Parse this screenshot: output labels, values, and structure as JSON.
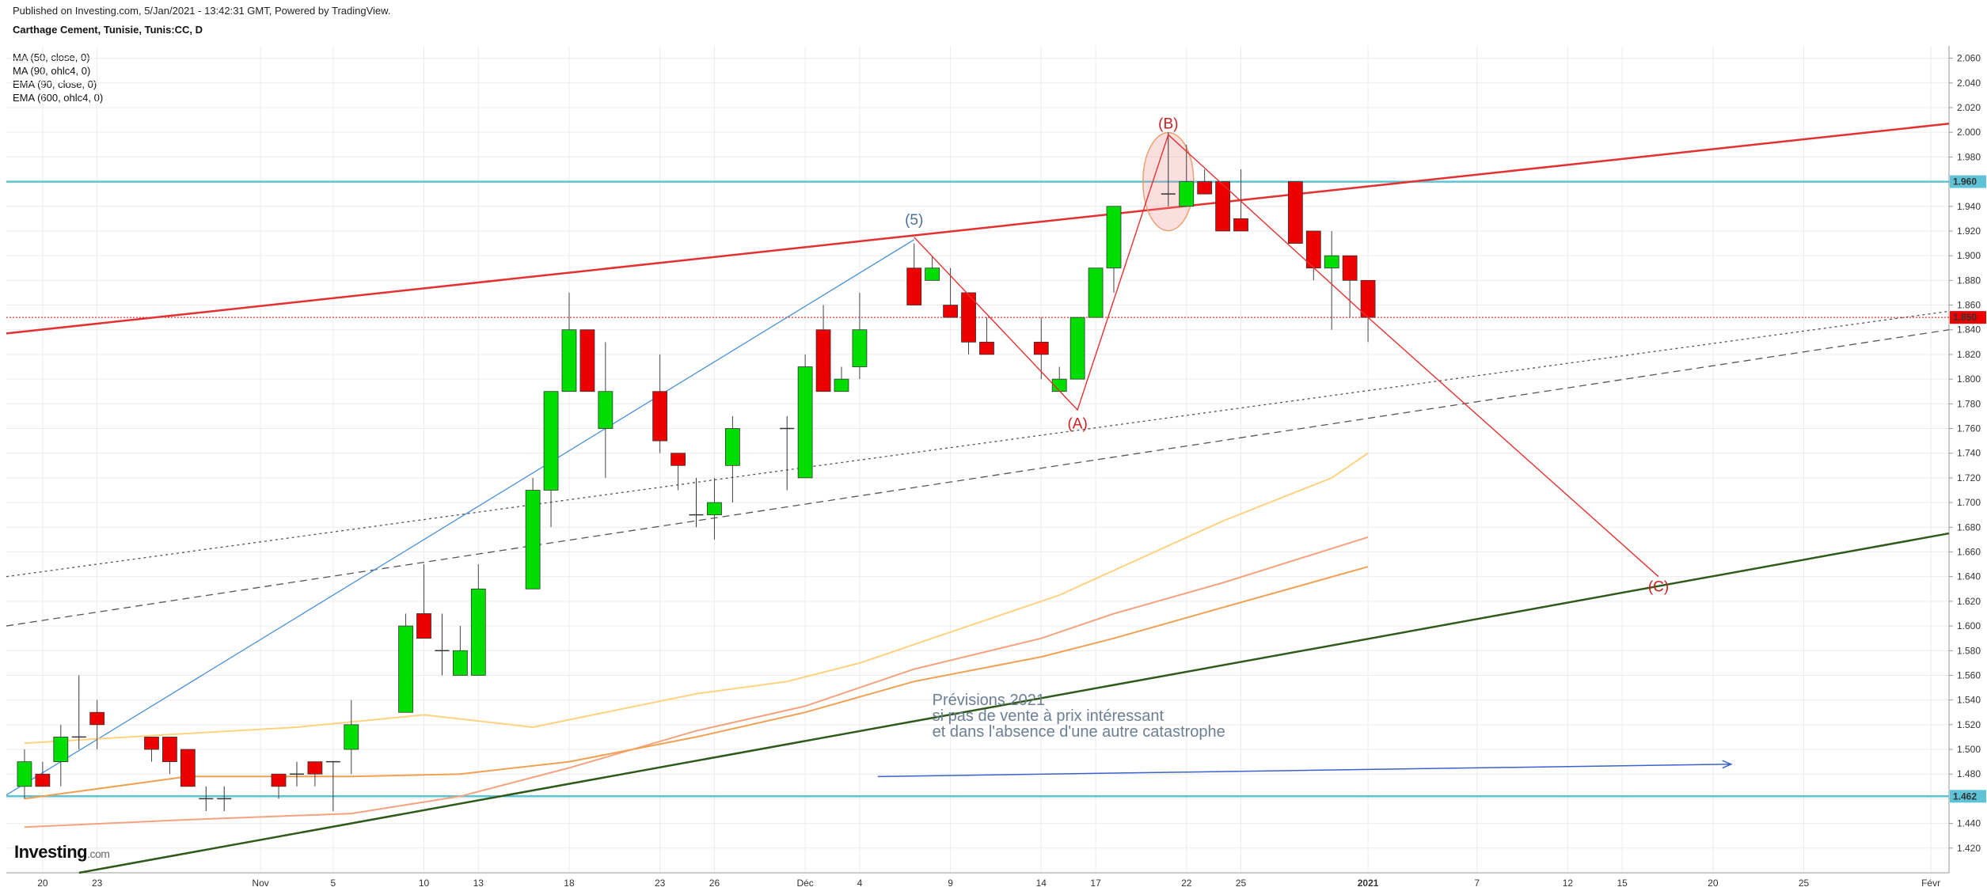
{
  "header": {
    "published": "Published on Investing.com, 5/Jan/2021 - 13:42:31 GMT, Powered by TradingView.",
    "title": "Carthage Cement, Tunisie, Tunis:CC, D"
  },
  "indicators": [
    "MA (50, close, 0)",
    "MA (90, ohlc4, 0)",
    "EMA (90, close, 0)",
    "EMA (600, ohlc4, 0)"
  ],
  "logo": {
    "main": "Investing",
    "suffix": ".com"
  },
  "colors": {
    "up": "#00dd00",
    "down": "#ee0000",
    "cyan": "#5ec3d6",
    "trend_red": "#e53030",
    "trend_green": "#2e5a1a",
    "ma50": "#ffd27f",
    "ma90": "#f5a37f",
    "ema90": "#f0a050",
    "annot": "#6b7f95",
    "blue_line": "#4a90d9",
    "arrow": "#3a62c9"
  },
  "chart_data": {
    "type": "candlestick",
    "title": "Carthage Cement, Tunisie, Tunis:CC, D",
    "y_range": [
      1.4,
      2.07
    ],
    "x_range": [
      "2020-10-18",
      "2021-02-02"
    ],
    "y_ticks": [
      "2.060",
      "2.040",
      "2.020",
      "2.000",
      "1.980",
      "1.960",
      "1.940",
      "1.920",
      "1.900",
      "1.880",
      "1.860",
      "1.840",
      "1.820",
      "1.800",
      "1.780",
      "1.760",
      "1.740",
      "1.720",
      "1.700",
      "1.680",
      "1.660",
      "1.640",
      "1.620",
      "1.600",
      "1.580",
      "1.560",
      "1.540",
      "1.520",
      "1.500",
      "1.480",
      "1.460",
      "1.440",
      "1.420"
    ],
    "x_ticks": [
      {
        "date": "2020-10-20",
        "label": "20"
      },
      {
        "date": "2020-10-23",
        "label": "23"
      },
      {
        "date": "2020-11-01",
        "label": "Nov"
      },
      {
        "date": "2020-11-05",
        "label": "5"
      },
      {
        "date": "2020-11-10",
        "label": "10"
      },
      {
        "date": "2020-11-13",
        "label": "13"
      },
      {
        "date": "2020-11-18",
        "label": "18"
      },
      {
        "date": "2020-11-23",
        "label": "23"
      },
      {
        "date": "2020-11-26",
        "label": "26"
      },
      {
        "date": "2020-12-01",
        "label": "Déc"
      },
      {
        "date": "2020-12-04",
        "label": "4"
      },
      {
        "date": "2020-12-09",
        "label": "9"
      },
      {
        "date": "2020-12-14",
        "label": "14"
      },
      {
        "date": "2020-12-17",
        "label": "17"
      },
      {
        "date": "2020-12-22",
        "label": "22"
      },
      {
        "date": "2020-12-25",
        "label": "25"
      },
      {
        "date": "2021-01-01",
        "label": "2021"
      },
      {
        "date": "2021-01-07",
        "label": "7"
      },
      {
        "date": "2021-01-12",
        "label": "12"
      },
      {
        "date": "2021-01-15",
        "label": "15"
      },
      {
        "date": "2021-01-20",
        "label": "20"
      },
      {
        "date": "2021-01-25",
        "label": "25"
      },
      {
        "date": "2021-02-01",
        "label": "Févr"
      }
    ],
    "candles": [
      {
        "date": "2020-10-19",
        "o": 1.47,
        "h": 1.5,
        "l": 1.46,
        "c": 1.49
      },
      {
        "date": "2020-10-20",
        "o": 1.48,
        "h": 1.49,
        "l": 1.47,
        "c": 1.47
      },
      {
        "date": "2020-10-21",
        "o": 1.49,
        "h": 1.52,
        "l": 1.47,
        "c": 1.51
      },
      {
        "date": "2020-10-22",
        "o": 1.51,
        "h": 1.56,
        "l": 1.5,
        "c": 1.51
      },
      {
        "date": "2020-10-23",
        "o": 1.53,
        "h": 1.54,
        "l": 1.5,
        "c": 1.52
      },
      {
        "date": "2020-10-26",
        "o": 1.51,
        "h": 1.51,
        "l": 1.49,
        "c": 1.5
      },
      {
        "date": "2020-10-27",
        "o": 1.51,
        "h": 1.51,
        "l": 1.48,
        "c": 1.49
      },
      {
        "date": "2020-10-28",
        "o": 1.5,
        "h": 1.5,
        "l": 1.47,
        "c": 1.47
      },
      {
        "date": "2020-10-29",
        "o": 1.46,
        "h": 1.47,
        "l": 1.45,
        "c": 1.46
      },
      {
        "date": "2020-10-30",
        "o": 1.46,
        "h": 1.47,
        "l": 1.45,
        "c": 1.46
      },
      {
        "date": "2020-11-02",
        "o": 1.48,
        "h": 1.48,
        "l": 1.46,
        "c": 1.47
      },
      {
        "date": "2020-11-03",
        "o": 1.48,
        "h": 1.49,
        "l": 1.47,
        "c": 1.48
      },
      {
        "date": "2020-11-04",
        "o": 1.49,
        "h": 1.49,
        "l": 1.47,
        "c": 1.48
      },
      {
        "date": "2020-11-05",
        "o": 1.49,
        "h": 1.49,
        "l": 1.45,
        "c": 1.49
      },
      {
        "date": "2020-11-06",
        "o": 1.5,
        "h": 1.54,
        "l": 1.48,
        "c": 1.52
      },
      {
        "date": "2020-11-09",
        "o": 1.53,
        "h": 1.61,
        "l": 1.53,
        "c": 1.6
      },
      {
        "date": "2020-11-10",
        "o": 1.61,
        "h": 1.65,
        "l": 1.59,
        "c": 1.59
      },
      {
        "date": "2020-11-11",
        "o": 1.58,
        "h": 1.61,
        "l": 1.56,
        "c": 1.58
      },
      {
        "date": "2020-11-12",
        "o": 1.56,
        "h": 1.6,
        "l": 1.56,
        "c": 1.58
      },
      {
        "date": "2020-11-13",
        "o": 1.56,
        "h": 1.65,
        "l": 1.56,
        "c": 1.63
      },
      {
        "date": "2020-11-16",
        "o": 1.63,
        "h": 1.72,
        "l": 1.63,
        "c": 1.71
      },
      {
        "date": "2020-11-17",
        "o": 1.71,
        "h": 1.79,
        "l": 1.68,
        "c": 1.79
      },
      {
        "date": "2020-11-18",
        "o": 1.79,
        "h": 1.87,
        "l": 1.79,
        "c": 1.84
      },
      {
        "date": "2020-11-19",
        "o": 1.84,
        "h": 1.84,
        "l": 1.79,
        "c": 1.79
      },
      {
        "date": "2020-11-20",
        "o": 1.76,
        "h": 1.83,
        "l": 1.72,
        "c": 1.79
      },
      {
        "date": "2020-11-23",
        "o": 1.79,
        "h": 1.82,
        "l": 1.74,
        "c": 1.75
      },
      {
        "date": "2020-11-24",
        "o": 1.74,
        "h": 1.74,
        "l": 1.71,
        "c": 1.73
      },
      {
        "date": "2020-11-25",
        "o": 1.69,
        "h": 1.72,
        "l": 1.68,
        "c": 1.69
      },
      {
        "date": "2020-11-26",
        "o": 1.69,
        "h": 1.72,
        "l": 1.67,
        "c": 1.7
      },
      {
        "date": "2020-11-27",
        "o": 1.73,
        "h": 1.77,
        "l": 1.7,
        "c": 1.76
      },
      {
        "date": "2020-11-30",
        "o": 1.76,
        "h": 1.77,
        "l": 1.71,
        "c": 1.76
      },
      {
        "date": "2020-12-01",
        "o": 1.72,
        "h": 1.82,
        "l": 1.72,
        "c": 1.81
      },
      {
        "date": "2020-12-02",
        "o": 1.84,
        "h": 1.86,
        "l": 1.79,
        "c": 1.79
      },
      {
        "date": "2020-12-03",
        "o": 1.79,
        "h": 1.81,
        "l": 1.79,
        "c": 1.8
      },
      {
        "date": "2020-12-04",
        "o": 1.81,
        "h": 1.87,
        "l": 1.8,
        "c": 1.84
      },
      {
        "date": "2020-12-07",
        "o": 1.89,
        "h": 1.91,
        "l": 1.86,
        "c": 1.86
      },
      {
        "date": "2020-12-08",
        "o": 1.88,
        "h": 1.9,
        "l": 1.88,
        "c": 1.89
      },
      {
        "date": "2020-12-09",
        "o": 1.86,
        "h": 1.89,
        "l": 1.85,
        "c": 1.85
      },
      {
        "date": "2020-12-10",
        "o": 1.87,
        "h": 1.87,
        "l": 1.82,
        "c": 1.83
      },
      {
        "date": "2020-12-11",
        "o": 1.83,
        "h": 1.85,
        "l": 1.82,
        "c": 1.82
      },
      {
        "date": "2020-12-14",
        "o": 1.83,
        "h": 1.85,
        "l": 1.8,
        "c": 1.82
      },
      {
        "date": "2020-12-15",
        "o": 1.79,
        "h": 1.81,
        "l": 1.79,
        "c": 1.8
      },
      {
        "date": "2020-12-16",
        "o": 1.8,
        "h": 1.85,
        "l": 1.8,
        "c": 1.85
      },
      {
        "date": "2020-12-17",
        "o": 1.85,
        "h": 1.89,
        "l": 1.85,
        "c": 1.89
      },
      {
        "date": "2020-12-18",
        "o": 1.89,
        "h": 1.94,
        "l": 1.87,
        "c": 1.94
      },
      {
        "date": "2020-12-21",
        "o": 1.95,
        "h": 2.0,
        "l": 1.94,
        "c": 1.95
      },
      {
        "date": "2020-12-22",
        "o": 1.94,
        "h": 1.99,
        "l": 1.94,
        "c": 1.96
      },
      {
        "date": "2020-12-23",
        "o": 1.96,
        "h": 1.97,
        "l": 1.95,
        "c": 1.95
      },
      {
        "date": "2020-12-24",
        "o": 1.96,
        "h": 1.96,
        "l": 1.92,
        "c": 1.92
      },
      {
        "date": "2020-12-25",
        "o": 1.93,
        "h": 1.97,
        "l": 1.92,
        "c": 1.92
      },
      {
        "date": "2020-12-28",
        "o": 1.96,
        "h": 1.96,
        "l": 1.91,
        "c": 1.91
      },
      {
        "date": "2020-12-29",
        "o": 1.92,
        "h": 1.92,
        "l": 1.88,
        "c": 1.89
      },
      {
        "date": "2020-12-30",
        "o": 1.89,
        "h": 1.92,
        "l": 1.84,
        "c": 1.9
      },
      {
        "date": "2020-12-31",
        "o": 1.9,
        "h": 1.9,
        "l": 1.85,
        "c": 1.88
      },
      {
        "date": "2021-01-01",
        "o": 1.88,
        "h": 1.88,
        "l": 1.83,
        "c": 1.85
      }
    ],
    "series": [
      {
        "name": "MA (50, close, 0)",
        "color": "#ffd27f",
        "points": [
          [
            "2020-10-19",
            1.505
          ],
          [
            "2020-10-27",
            1.512
          ],
          [
            "2020-11-03",
            1.518
          ],
          [
            "2020-11-10",
            1.528
          ],
          [
            "2020-11-16",
            1.518
          ],
          [
            "2020-11-20",
            1.53
          ],
          [
            "2020-11-25",
            1.545
          ],
          [
            "2020-11-30",
            1.555
          ],
          [
            "2020-12-04",
            1.57
          ],
          [
            "2020-12-10",
            1.6
          ],
          [
            "2020-12-15",
            1.625
          ],
          [
            "2020-12-18",
            1.645
          ],
          [
            "2020-12-24",
            1.685
          ],
          [
            "2020-12-30",
            1.72
          ],
          [
            "2021-01-01",
            1.74
          ]
        ]
      },
      {
        "name": "MA (90, ohlc4, 0)",
        "color": "#f5a37f",
        "points": [
          [
            "2020-10-19",
            1.437
          ],
          [
            "2020-10-28",
            1.443
          ],
          [
            "2020-11-06",
            1.448
          ],
          [
            "2020-11-12",
            1.462
          ],
          [
            "2020-11-18",
            1.485
          ],
          [
            "2020-11-25",
            1.515
          ],
          [
            "2020-12-01",
            1.535
          ],
          [
            "2020-12-07",
            1.565
          ],
          [
            "2020-12-14",
            1.59
          ],
          [
            "2020-12-18",
            1.61
          ],
          [
            "2020-12-24",
            1.635
          ],
          [
            "2021-01-01",
            1.672
          ]
        ]
      },
      {
        "name": "EMA (90, close, 0)",
        "color": "#f0a050",
        "points": [
          [
            "2020-10-19",
            1.46
          ],
          [
            "2020-10-28",
            1.478
          ],
          [
            "2020-11-06",
            1.478
          ],
          [
            "2020-11-12",
            1.48
          ],
          [
            "2020-11-18",
            1.49
          ],
          [
            "2020-11-25",
            1.51
          ],
          [
            "2020-12-01",
            1.53
          ],
          [
            "2020-12-07",
            1.555
          ],
          [
            "2020-12-14",
            1.575
          ],
          [
            "2020-12-18",
            1.59
          ],
          [
            "2020-12-24",
            1.615
          ],
          [
            "2021-01-01",
            1.648
          ]
        ]
      }
    ],
    "horizontal_levels": [
      {
        "value": 1.96,
        "label": "1.960",
        "color": "#5ec3d6"
      },
      {
        "value": 1.85,
        "label": "1.850",
        "color": "#ee0000",
        "style": "dotted"
      },
      {
        "value": 1.462,
        "label": "1.462",
        "color": "#5ec3d6"
      }
    ],
    "trendlines": [
      {
        "name": "red-resistance",
        "color": "#e53030",
        "from": [
          "2020-10-18",
          1.837
        ],
        "to": [
          "2021-02-02",
          2.007
        ]
      },
      {
        "name": "green-support",
        "color": "#2e5a1a",
        "from": [
          "2020-10-22",
          1.4
        ],
        "to": [
          "2021-02-02",
          1.675
        ]
      },
      {
        "name": "dotted-channel",
        "color": "#555555",
        "style": "dotted",
        "from": [
          "2020-10-18",
          1.64
        ],
        "to": [
          "2021-02-02",
          1.855
        ]
      },
      {
        "name": "dashed-channel",
        "color": "#555555",
        "style": "dashed",
        "from": [
          "2020-10-18",
          1.6
        ],
        "to": [
          "2021-02-02",
          1.84
        ]
      },
      {
        "name": "blue-impulse",
        "color": "#4a90d9",
        "from": [
          "2020-10-18",
          1.463
        ],
        "to": [
          "2020-12-07",
          1.913
        ]
      }
    ],
    "wave_path": [
      [
        "2020-12-07",
        1.915
      ],
      [
        "2020-12-16",
        1.775
      ],
      [
        "2020-12-21",
        1.998
      ],
      [
        "2021-01-01",
        1.85
      ],
      [
        "2021-01-17",
        1.64
      ]
    ],
    "wave_labels": [
      {
        "text": "(5)",
        "date": "2020-12-07",
        "y": 1.925,
        "color": "#4a6f99"
      },
      {
        "text": "(A)",
        "date": "2020-12-16",
        "y": 1.76,
        "color": "#cc2020"
      },
      {
        "text": "(B)",
        "date": "2020-12-21",
        "y": 2.003,
        "color": "#cc2020"
      },
      {
        "text": "(C)",
        "date": "2021-01-17",
        "y": 1.628,
        "color": "#cc2020"
      }
    ],
    "highlight_ellipse": {
      "date": "2020-12-21",
      "y": 1.96
    },
    "annotation": {
      "lines": [
        "Prévisions 2021",
        "si pas de vente à prix intéressant",
        "et dans l'absence d'une autre catastrophe"
      ],
      "anchor_date": "2020-12-08",
      "anchor_y": 1.536
    },
    "arrow": {
      "from": [
        "2020-12-05",
        1.478
      ],
      "to": [
        "2021-01-21",
        1.488
      ]
    }
  }
}
